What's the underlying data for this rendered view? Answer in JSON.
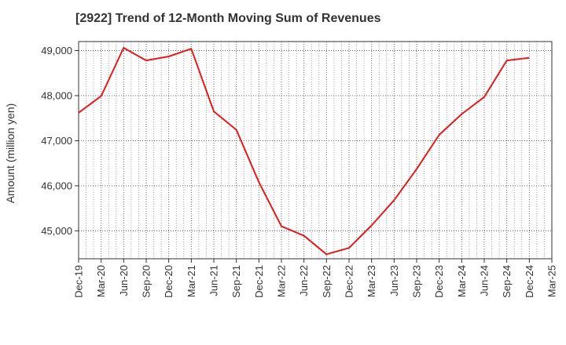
{
  "chart_data": {
    "type": "line",
    "title": "[2922]  Trend of 12-Month Moving Sum of Revenues",
    "xlabel": "",
    "ylabel": "Amount (million yen)",
    "x": [
      "Dec-19",
      "Mar-20",
      "Jun-20",
      "Sep-20",
      "Dec-20",
      "Mar-21",
      "Jun-21",
      "Sep-21",
      "Dec-21",
      "Mar-22",
      "Jun-22",
      "Sep-22",
      "Dec-22",
      "Mar-23",
      "Jun-23",
      "Sep-23",
      "Dec-23",
      "Mar-24",
      "Jun-24",
      "Sep-24",
      "Dec-24",
      "Mar-25"
    ],
    "series": [
      {
        "color": "#e31a1c",
        "values": [
          47620,
          47990,
          49060,
          48780,
          48870,
          49040,
          47650,
          47240,
          46080,
          45100,
          44890,
          44480,
          44620,
          45120,
          45680,
          46370,
          47130,
          47590,
          47970,
          48780,
          48840,
          null
        ]
      }
    ],
    "ylim": [
      44380,
      49200
    ],
    "yticks": [
      45000,
      46000,
      47000,
      48000,
      49000
    ],
    "ytick_labels": [
      "45,000",
      "46,000",
      "47,000",
      "48,000",
      "49,000"
    ],
    "grid": true,
    "grid_style": "dotted",
    "legend": "none"
  }
}
